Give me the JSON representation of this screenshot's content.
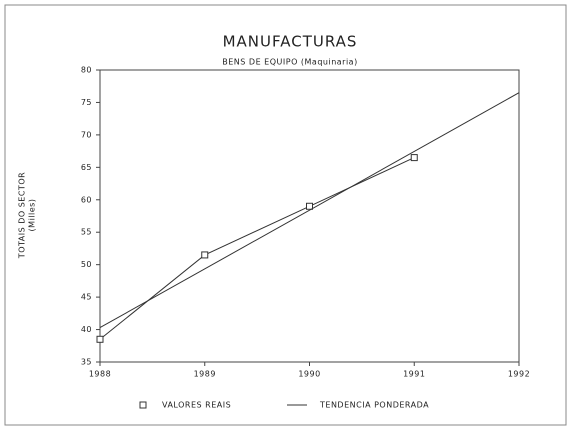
{
  "chart_data": {
    "type": "line",
    "title": "MANUFACTURAS",
    "subtitle": "BENS DE EQUIPO (Maquinaria)",
    "ylabel": [
      "TOTAIS DO SECTOR",
      "(Milles)"
    ],
    "xlim": [
      1988,
      1992
    ],
    "xticks": [
      1988,
      1989,
      1990,
      1991,
      1992
    ],
    "ylim": [
      35,
      80
    ],
    "yticks": [
      35,
      40,
      45,
      50,
      55,
      60,
      65,
      70,
      75,
      80
    ],
    "series": [
      {
        "name": "VALORES REAIS",
        "color": "#333333",
        "marker": "square",
        "x": [
          1988,
          1989,
          1990,
          1991
        ],
        "values": [
          38.5,
          51.5,
          59,
          66.5
        ]
      },
      {
        "name": "TENDENCIA PONDERADA",
        "color": "#333333",
        "marker": "none",
        "x": [
          1988,
          1992
        ],
        "values": [
          40.3,
          76.5
        ]
      }
    ]
  }
}
